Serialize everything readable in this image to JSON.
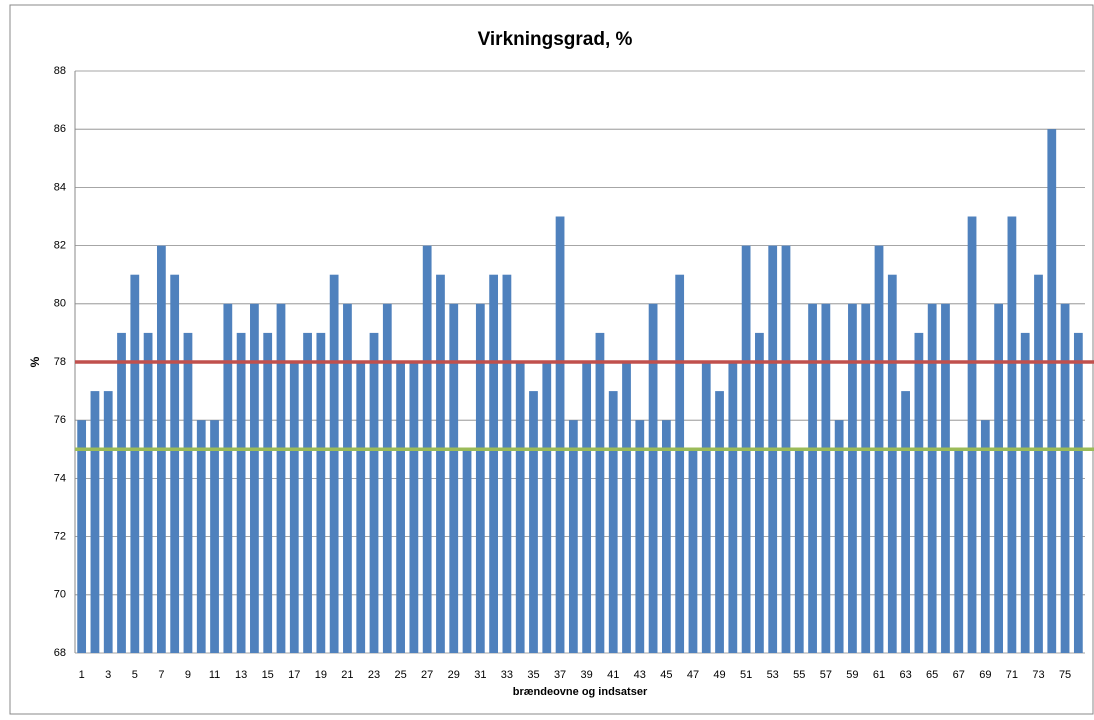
{
  "chart_data": {
    "type": "bar",
    "title": "Virkningsgrad, %",
    "x_label": "brændeovne og indsatser",
    "y_label": "%",
    "categories": [
      1,
      null,
      3,
      null,
      5,
      null,
      7,
      null,
      9,
      null,
      11,
      null,
      13,
      null,
      15,
      null,
      17,
      null,
      19,
      null,
      21,
      null,
      23,
      null,
      25,
      null,
      27,
      null,
      29,
      null,
      31,
      null,
      33,
      null,
      35,
      null,
      37,
      null,
      39,
      null,
      41,
      null,
      43,
      null,
      45,
      null,
      47,
      null,
      49,
      null,
      51,
      null,
      53,
      null,
      55,
      null,
      57,
      null,
      59,
      null,
      61,
      null,
      63,
      null,
      65,
      null,
      67,
      null,
      69,
      null,
      71,
      null,
      73,
      null,
      75,
      null
    ],
    "values": [
      76,
      77,
      77,
      79,
      81,
      79,
      82,
      81,
      79,
      76,
      76,
      80,
      79,
      80,
      79,
      80,
      78,
      79,
      79,
      81,
      80,
      78,
      79,
      80,
      78,
      78,
      82,
      81,
      80,
      75,
      80,
      81,
      81,
      78,
      77,
      78,
      83,
      76,
      78,
      79,
      77,
      78,
      76,
      80,
      76,
      81,
      75,
      78,
      77,
      78,
      82,
      79,
      82,
      82,
      75,
      80,
      80,
      76,
      80,
      80,
      82,
      81,
      77,
      79,
      80,
      80,
      75,
      83,
      76,
      80,
      83,
      79,
      81,
      86,
      80,
      79
    ],
    "color": "#4f81bd",
    "reference_lines": [
      {
        "value": 78,
        "color": "#c0504d"
      },
      {
        "value": 75,
        "color": "#9bbb59"
      }
    ],
    "ylim": [
      68,
      88
    ],
    "yticks": [
      68,
      70,
      72,
      74,
      76,
      78,
      80,
      82,
      84,
      86,
      88
    ],
    "grid": true
  }
}
